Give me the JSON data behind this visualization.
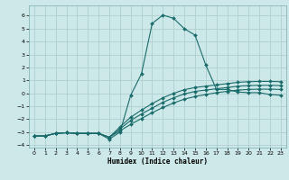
{
  "title": "",
  "xlabel": "Humidex (Indice chaleur)",
  "background_color": "#cde8e8",
  "grid_color": "#aecfcf",
  "line_color": "#1a6b6b",
  "xlim": [
    -0.5,
    23.5
  ],
  "ylim": [
    -4.2,
    6.8
  ],
  "xticks": [
    0,
    1,
    2,
    3,
    4,
    5,
    6,
    7,
    8,
    9,
    10,
    11,
    12,
    13,
    14,
    15,
    16,
    17,
    18,
    19,
    20,
    21,
    22,
    23
  ],
  "yticks": [
    -4,
    -3,
    -2,
    -1,
    0,
    1,
    2,
    3,
    4,
    5,
    6
  ],
  "lines": [
    {
      "x": [
        0,
        1,
        2,
        3,
        4,
        5,
        6,
        7,
        8,
        9,
        10,
        11,
        12,
        13,
        14,
        15,
        16,
        17,
        18,
        19,
        20,
        21,
        22,
        23
      ],
      "y": [
        -3.3,
        -3.3,
        -3.1,
        -3.05,
        -3.1,
        -3.1,
        -3.1,
        -3.55,
        -3.0,
        -0.15,
        1.5,
        5.4,
        6.05,
        5.8,
        5.0,
        4.5,
        2.2,
        0.3,
        0.3,
        0.1,
        0.05,
        0.05,
        -0.1,
        -0.15
      ]
    },
    {
      "x": [
        0,
        1,
        2,
        3,
        4,
        5,
        6,
        7,
        8,
        9,
        10,
        11,
        12,
        13,
        14,
        15,
        16,
        17,
        18,
        19,
        20,
        21,
        22,
        23
      ],
      "y": [
        -3.3,
        -3.3,
        -3.1,
        -3.05,
        -3.1,
        -3.1,
        -3.1,
        -3.4,
        -2.6,
        -1.85,
        -1.3,
        -0.8,
        -0.35,
        0.0,
        0.28,
        0.45,
        0.55,
        0.65,
        0.75,
        0.85,
        0.9,
        0.92,
        0.92,
        0.9
      ]
    },
    {
      "x": [
        0,
        1,
        2,
        3,
        4,
        5,
        6,
        7,
        8,
        9,
        10,
        11,
        12,
        13,
        14,
        15,
        16,
        17,
        18,
        19,
        20,
        21,
        22,
        23
      ],
      "y": [
        -3.3,
        -3.3,
        -3.1,
        -3.05,
        -3.1,
        -3.1,
        -3.1,
        -3.4,
        -2.75,
        -2.1,
        -1.6,
        -1.15,
        -0.7,
        -0.35,
        -0.05,
        0.15,
        0.25,
        0.35,
        0.45,
        0.55,
        0.6,
        0.62,
        0.62,
        0.6
      ]
    },
    {
      "x": [
        0,
        1,
        2,
        3,
        4,
        5,
        6,
        7,
        8,
        9,
        10,
        11,
        12,
        13,
        14,
        15,
        16,
        17,
        18,
        19,
        20,
        21,
        22,
        23
      ],
      "y": [
        -3.3,
        -3.3,
        -3.1,
        -3.05,
        -3.1,
        -3.1,
        -3.1,
        -3.4,
        -2.9,
        -2.4,
        -1.95,
        -1.5,
        -1.1,
        -0.75,
        -0.45,
        -0.25,
        -0.1,
        0.05,
        0.15,
        0.25,
        0.3,
        0.32,
        0.32,
        0.3
      ]
    }
  ]
}
